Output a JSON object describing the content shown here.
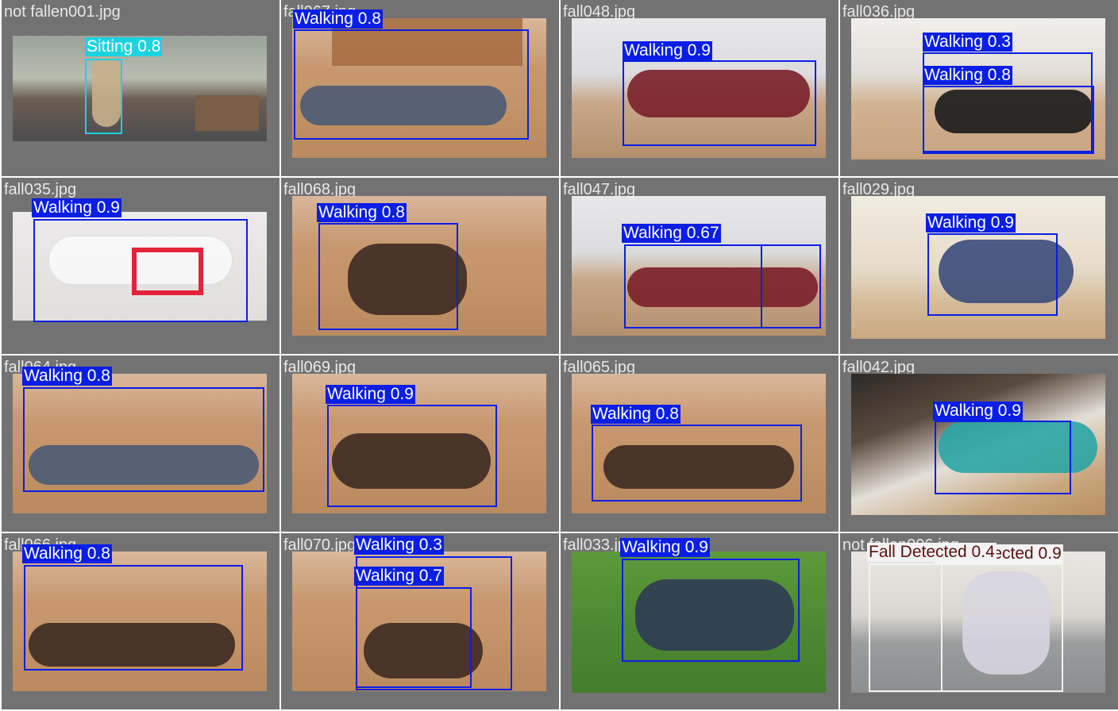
{
  "colors": {
    "tile_background": "#727272",
    "walking_box": "#0a1ee6",
    "sitting_box": "#19d4e0",
    "fall_box": "#f3f3f3",
    "fall_label_text": "#5a1010",
    "label_text": "#ffffff",
    "filename_text": "#e8e8e8"
  },
  "tiles": [
    {
      "filename": "not fallen001.jpg",
      "detections": [
        {
          "label": "Sitting 0.8",
          "cls": "cyan"
        }
      ]
    },
    {
      "filename": "fall067.jpg",
      "detections": [
        {
          "label": "Walking 0.8"
        }
      ]
    },
    {
      "filename": "fall048.jpg",
      "detections": [
        {
          "label": "Walking 0.9"
        }
      ]
    },
    {
      "filename": "fall036.jpg",
      "detections": [
        {
          "label": "Walking 0.3"
        },
        {
          "label": "Walking 0.8"
        }
      ]
    },
    {
      "filename": "fall035.jpg",
      "detections": [
        {
          "label": "Walking 0.9"
        }
      ]
    },
    {
      "filename": "fall068.jpg",
      "detections": [
        {
          "label": "Walking 0.8"
        }
      ]
    },
    {
      "filename": "fall047.jpg",
      "detections": [
        {
          "label": "Walking 0.67"
        }
      ]
    },
    {
      "filename": "fall029.jpg",
      "detections": [
        {
          "label": "Walking 0.9"
        }
      ]
    },
    {
      "filename": "fall064.jpg",
      "detections": [
        {
          "label": "Walking 0.8"
        }
      ]
    },
    {
      "filename": "fall069.jpg",
      "detections": [
        {
          "label": "Walking 0.9"
        }
      ]
    },
    {
      "filename": "fall065.jpg",
      "detections": [
        {
          "label": "Walking 0.8"
        }
      ]
    },
    {
      "filename": "fall042.jpg",
      "detections": [
        {
          "label": "Walking 0.9"
        }
      ]
    },
    {
      "filename": "fall066.jpg",
      "detections": [
        {
          "label": "Walking 0.8"
        }
      ]
    },
    {
      "filename": "fall070.jpg",
      "detections": [
        {
          "label": "Walking 0.3"
        },
        {
          "label": "Walking 0.7"
        }
      ]
    },
    {
      "filename": "fall033.jpg",
      "detections": [
        {
          "label": "Walking 0.9"
        }
      ]
    },
    {
      "filename": "not fallen006.jpg",
      "detections": [
        {
          "label": "Fall Detected 0.4",
          "cls": "white"
        },
        {
          "label": "Fall Detected 0.9",
          "cls": "white"
        }
      ]
    }
  ]
}
